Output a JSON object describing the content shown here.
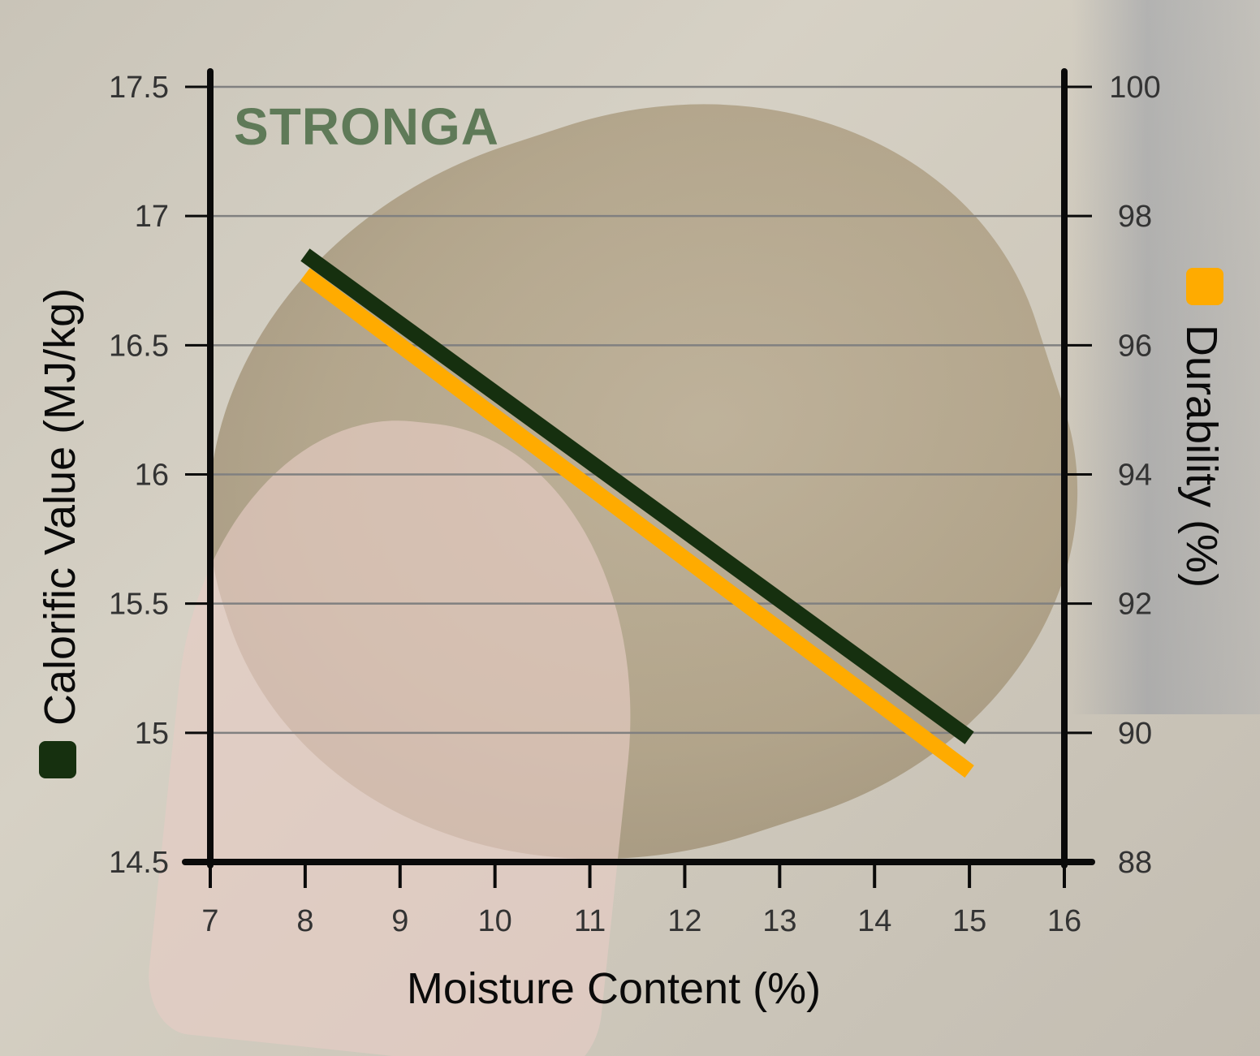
{
  "brand_text": "STRONGA",
  "colors": {
    "calorific": "#16300f",
    "durability": "#ffab00",
    "axis": "#0a0a0a",
    "grid": "#808080",
    "brand": "#5f7a58"
  },
  "chart_data": {
    "type": "line",
    "xlabel": "Moisture Content (%)",
    "ylabel_left": "Calorific Value (MJ/kg)",
    "ylabel_right": "Durability (%)",
    "xlim": [
      7,
      16
    ],
    "ylim_left": [
      14.5,
      17.5
    ],
    "ylim_right": [
      88,
      100
    ],
    "x_ticks": [
      "7",
      "8",
      "9",
      "10",
      "11",
      "12",
      "13",
      "14",
      "15",
      "16"
    ],
    "y_ticks_left": [
      "17.5",
      "17",
      "16.5",
      "16",
      "15.5",
      "15",
      "14.5"
    ],
    "y_ticks_right": [
      "100",
      "98",
      "96",
      "94",
      "92",
      "90",
      "88"
    ],
    "grid": true,
    "legend": "inline with axis titles (color squares)",
    "series": [
      {
        "axis": "left",
        "color": "#16300f",
        "x": [
          8,
          15
        ],
        "y": [
          16.85,
          14.98
        ]
      },
      {
        "axis": "right",
        "color": "#ffab00",
        "x": [
          8,
          15
        ],
        "y": [
          97.1,
          89.4
        ]
      }
    ]
  }
}
